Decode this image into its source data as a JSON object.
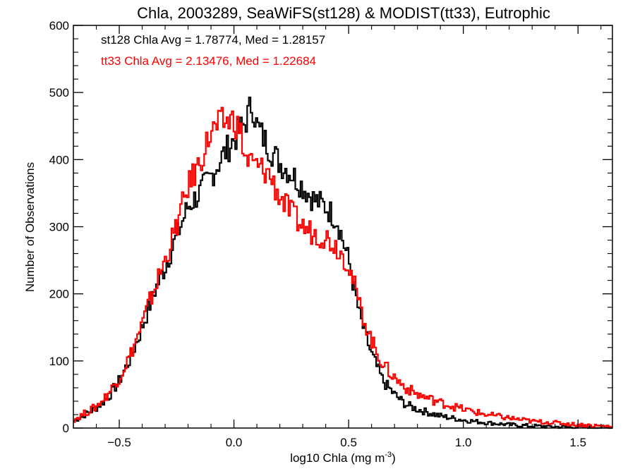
{
  "chart_data": {
    "type": "line",
    "step": true,
    "title": "Chla, 2003289, SeaWiFS(st128) & MODIST(tt33), Eutrophic",
    "xlabel": "log10 Chla (mg m",
    "xlabel_sup": "-3",
    "xlabel_end": ")",
    "ylabel": "Number of Observations",
    "xlim": [
      -0.7,
      1.65
    ],
    "ylim": [
      0,
      600
    ],
    "xticks": [
      -0.5,
      0.0,
      0.5,
      1.0,
      1.5
    ],
    "xtick_labels": [
      "−0.5",
      "0.0",
      "0.5",
      "1.0",
      "1.5"
    ],
    "yticks": [
      0,
      100,
      200,
      300,
      400,
      500,
      600
    ],
    "ytick_labels": [
      "0",
      "100",
      "200",
      "300",
      "400",
      "500",
      "600"
    ],
    "grid": false,
    "annotations": [
      {
        "text": "st128 Chla Avg = 1.78774, Med = 1.28157",
        "color": "#000000"
      },
      {
        "text": "tt33 Chla Avg = 2.13476, Med = 1.22684",
        "color": "#ff0000"
      }
    ],
    "series": [
      {
        "color": "#000000",
        "x": [
          -0.7,
          -0.65,
          -0.6,
          -0.55,
          -0.5,
          -0.45,
          -0.4,
          -0.35,
          -0.3,
          -0.25,
          -0.2,
          -0.15,
          -0.1,
          -0.05,
          0.0,
          0.05,
          0.08,
          0.1,
          0.15,
          0.2,
          0.25,
          0.3,
          0.35,
          0.4,
          0.45,
          0.5,
          0.55,
          0.6,
          0.65,
          0.7,
          0.75,
          0.8,
          0.9,
          1.0,
          1.1,
          1.2,
          1.3,
          1.4,
          1.5,
          1.6,
          1.65
        ],
        "y": [
          10,
          20,
          30,
          45,
          70,
          105,
          150,
          200,
          240,
          285,
          330,
          350,
          375,
          405,
          430,
          455,
          485,
          450,
          420,
          395,
          380,
          360,
          340,
          330,
          310,
          250,
          165,
          110,
          70,
          50,
          35,
          28,
          18,
          12,
          8,
          5,
          3,
          2,
          1,
          1,
          0
        ]
      },
      {
        "color": "#ff0000",
        "x": [
          -0.7,
          -0.65,
          -0.6,
          -0.55,
          -0.5,
          -0.45,
          -0.4,
          -0.35,
          -0.3,
          -0.25,
          -0.2,
          -0.15,
          -0.1,
          -0.05,
          0.0,
          0.03,
          0.05,
          0.1,
          0.15,
          0.2,
          0.25,
          0.3,
          0.35,
          0.4,
          0.45,
          0.5,
          0.55,
          0.6,
          0.65,
          0.7,
          0.75,
          0.8,
          0.9,
          1.0,
          1.1,
          1.2,
          1.3,
          1.4,
          1.5,
          1.6,
          1.65
        ],
        "y": [
          12,
          22,
          32,
          50,
          75,
          110,
          155,
          205,
          250,
          300,
          360,
          395,
          440,
          455,
          460,
          440,
          400,
          390,
          380,
          345,
          320,
          300,
          290,
          285,
          270,
          245,
          180,
          130,
          95,
          75,
          60,
          50,
          38,
          28,
          20,
          15,
          10,
          8,
          5,
          3,
          2
        ]
      }
    ]
  }
}
